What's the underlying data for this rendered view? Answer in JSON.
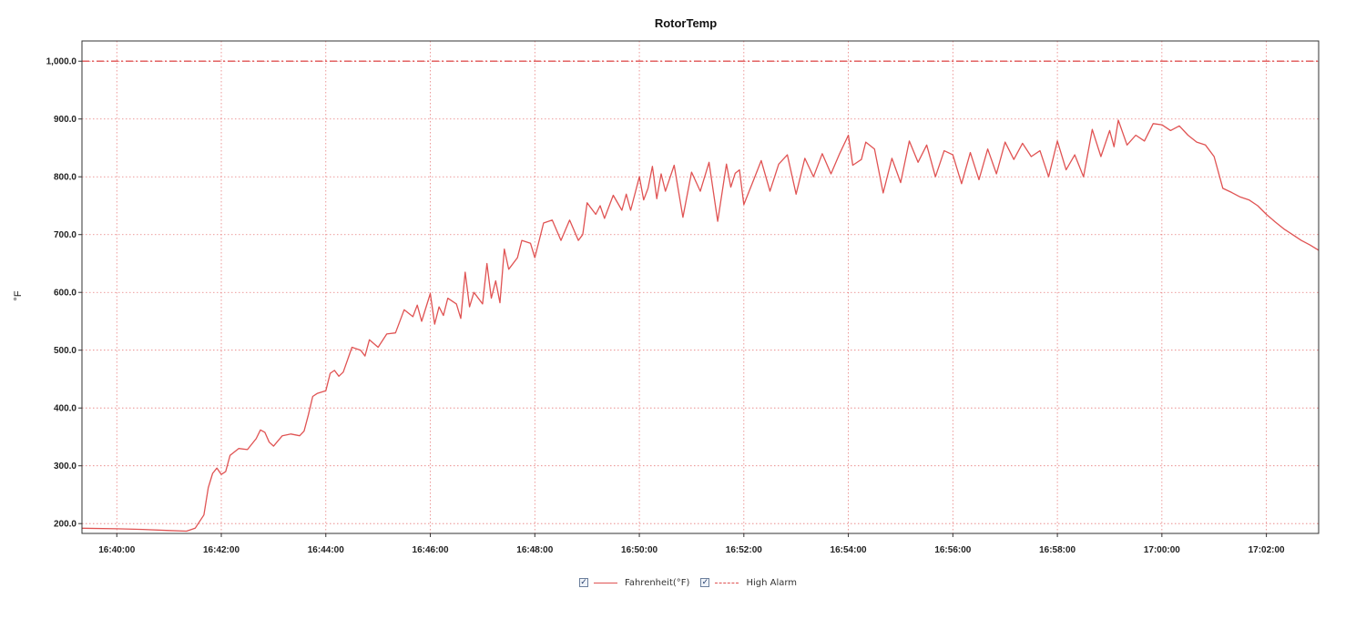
{
  "chart_data": {
    "type": "line",
    "title": "RotorTemp",
    "ylabel": "°F",
    "xlabel": "",
    "ylim": [
      183,
      1035
    ],
    "xlim": [
      "16:39:20",
      "17:03:00"
    ],
    "x_ticks": [
      "16:40:00",
      "16:42:00",
      "16:44:00",
      "16:46:00",
      "16:48:00",
      "16:50:00",
      "16:52:00",
      "16:54:00",
      "16:56:00",
      "16:58:00",
      "17:00:00",
      "17:02:00"
    ],
    "y_ticks": [
      "200.0",
      "300.0",
      "400.0",
      "500.0",
      "600.0",
      "700.0",
      "800.0",
      "900.0",
      "1,000.0"
    ],
    "grid": true,
    "legend_position": "bottom-center",
    "series": [
      {
        "name": "Fahrenheit(°F)",
        "color": "#e05353",
        "style": "solid",
        "points": [
          [
            "16:39:20",
            192
          ],
          [
            "16:40:00",
            191
          ],
          [
            "16:40:30",
            190
          ],
          [
            "16:41:00",
            188
          ],
          [
            "16:41:20",
            187
          ],
          [
            "16:41:30",
            192
          ],
          [
            "16:41:40",
            215
          ],
          [
            "16:41:45",
            262
          ],
          [
            "16:41:50",
            287
          ],
          [
            "16:41:55",
            296
          ],
          [
            "16:42:00",
            285
          ],
          [
            "16:42:05",
            290
          ],
          [
            "16:42:10",
            318
          ],
          [
            "16:42:20",
            330
          ],
          [
            "16:42:30",
            328
          ],
          [
            "16:42:40",
            347
          ],
          [
            "16:42:45",
            362
          ],
          [
            "16:42:50",
            358
          ],
          [
            "16:42:55",
            341
          ],
          [
            "16:43:00",
            334
          ],
          [
            "16:43:10",
            352
          ],
          [
            "16:43:20",
            355
          ],
          [
            "16:43:30",
            352
          ],
          [
            "16:43:35",
            360
          ],
          [
            "16:43:40",
            388
          ],
          [
            "16:43:45",
            420
          ],
          [
            "16:43:50",
            425
          ],
          [
            "16:44:00",
            430
          ],
          [
            "16:44:05",
            460
          ],
          [
            "16:44:10",
            465
          ],
          [
            "16:44:15",
            455
          ],
          [
            "16:44:20",
            462
          ],
          [
            "16:44:30",
            505
          ],
          [
            "16:44:40",
            500
          ],
          [
            "16:44:45",
            490
          ],
          [
            "16:44:50",
            518
          ],
          [
            "16:45:00",
            505
          ],
          [
            "16:45:10",
            528
          ],
          [
            "16:45:20",
            530
          ],
          [
            "16:45:30",
            570
          ],
          [
            "16:45:40",
            558
          ],
          [
            "16:45:45",
            578
          ],
          [
            "16:45:50",
            550
          ],
          [
            "16:46:00",
            598
          ],
          [
            "16:46:05",
            545
          ],
          [
            "16:46:10",
            575
          ],
          [
            "16:46:15",
            560
          ],
          [
            "16:46:20",
            590
          ],
          [
            "16:46:30",
            580
          ],
          [
            "16:46:35",
            555
          ],
          [
            "16:46:40",
            635
          ],
          [
            "16:46:45",
            575
          ],
          [
            "16:46:50",
            600
          ],
          [
            "16:47:00",
            580
          ],
          [
            "16:47:05",
            650
          ],
          [
            "16:47:10",
            590
          ],
          [
            "16:47:15",
            620
          ],
          [
            "16:47:20",
            582
          ],
          [
            "16:47:25",
            675
          ],
          [
            "16:47:30",
            640
          ],
          [
            "16:47:40",
            660
          ],
          [
            "16:47:45",
            690
          ],
          [
            "16:47:55",
            685
          ],
          [
            "16:48:00",
            660
          ],
          [
            "16:48:10",
            720
          ],
          [
            "16:48:20",
            725
          ],
          [
            "16:48:30",
            690
          ],
          [
            "16:48:40",
            725
          ],
          [
            "16:48:50",
            690
          ],
          [
            "16:48:55",
            700
          ],
          [
            "16:49:00",
            755
          ],
          [
            "16:49:10",
            735
          ],
          [
            "16:49:15",
            750
          ],
          [
            "16:49:20",
            728
          ],
          [
            "16:49:30",
            768
          ],
          [
            "16:49:40",
            742
          ],
          [
            "16:49:45",
            770
          ],
          [
            "16:49:50",
            742
          ],
          [
            "16:50:00",
            800
          ],
          [
            "16:50:05",
            760
          ],
          [
            "16:50:10",
            780
          ],
          [
            "16:50:15",
            818
          ],
          [
            "16:50:20",
            762
          ],
          [
            "16:50:25",
            805
          ],
          [
            "16:50:30",
            775
          ],
          [
            "16:50:40",
            820
          ],
          [
            "16:50:50",
            730
          ],
          [
            "16:51:00",
            808
          ],
          [
            "16:51:10",
            775
          ],
          [
            "16:51:20",
            825
          ],
          [
            "16:51:30",
            723
          ],
          [
            "16:51:40",
            822
          ],
          [
            "16:51:45",
            782
          ],
          [
            "16:51:50",
            806
          ],
          [
            "16:51:55",
            812
          ],
          [
            "16:52:00",
            752
          ],
          [
            "16:52:10",
            790
          ],
          [
            "16:52:20",
            828
          ],
          [
            "16:52:30",
            775
          ],
          [
            "16:52:40",
            822
          ],
          [
            "16:52:50",
            838
          ],
          [
            "16:53:00",
            770
          ],
          [
            "16:53:10",
            832
          ],
          [
            "16:53:20",
            800
          ],
          [
            "16:53:30",
            840
          ],
          [
            "16:53:40",
            805
          ],
          [
            "16:53:50",
            840
          ],
          [
            "16:54:00",
            872
          ],
          [
            "16:54:05",
            820
          ],
          [
            "16:54:15",
            830
          ],
          [
            "16:54:20",
            860
          ],
          [
            "16:54:30",
            848
          ],
          [
            "16:54:40",
            772
          ],
          [
            "16:54:50",
            832
          ],
          [
            "16:55:00",
            790
          ],
          [
            "16:55:10",
            862
          ],
          [
            "16:55:20",
            825
          ],
          [
            "16:55:30",
            855
          ],
          [
            "16:55:40",
            800
          ],
          [
            "16:55:50",
            845
          ],
          [
            "16:56:00",
            838
          ],
          [
            "16:56:10",
            788
          ],
          [
            "16:56:20",
            842
          ],
          [
            "16:56:30",
            795
          ],
          [
            "16:56:40",
            848
          ],
          [
            "16:56:50",
            805
          ],
          [
            "16:57:00",
            860
          ],
          [
            "16:57:10",
            830
          ],
          [
            "16:57:20",
            858
          ],
          [
            "16:57:30",
            835
          ],
          [
            "16:57:40",
            845
          ],
          [
            "16:57:50",
            800
          ],
          [
            "16:58:00",
            862
          ],
          [
            "16:58:10",
            812
          ],
          [
            "16:58:20",
            838
          ],
          [
            "16:58:30",
            800
          ],
          [
            "16:58:40",
            882
          ],
          [
            "16:58:50",
            835
          ],
          [
            "16:59:00",
            880
          ],
          [
            "16:59:05",
            852
          ],
          [
            "16:59:10",
            898
          ],
          [
            "16:59:20",
            855
          ],
          [
            "16:59:30",
            872
          ],
          [
            "16:59:40",
            862
          ],
          [
            "16:59:50",
            892
          ],
          [
            "17:00:00",
            890
          ],
          [
            "17:00:10",
            880
          ],
          [
            "17:00:20",
            888
          ],
          [
            "17:00:30",
            872
          ],
          [
            "17:00:40",
            860
          ],
          [
            "17:00:50",
            855
          ],
          [
            "17:01:00",
            835
          ],
          [
            "17:01:10",
            780
          ],
          [
            "17:01:20",
            773
          ],
          [
            "17:01:30",
            765
          ],
          [
            "17:01:40",
            760
          ],
          [
            "17:01:50",
            750
          ],
          [
            "17:02:00",
            735
          ],
          [
            "17:02:10",
            722
          ],
          [
            "17:02:20",
            710
          ],
          [
            "17:02:30",
            700
          ],
          [
            "17:02:40",
            690
          ],
          [
            "17:02:50",
            682
          ],
          [
            "17:03:00",
            673
          ]
        ]
      },
      {
        "name": "High Alarm",
        "color": "#e05353",
        "style": "dash-dot",
        "points": [
          [
            "16:39:20",
            1000
          ],
          [
            "17:03:00",
            1000
          ]
        ]
      }
    ]
  },
  "legend": {
    "checked_glyph": "✓",
    "items": [
      {
        "label": "Fahrenheit(°F)",
        "checked": true
      },
      {
        "label": "High Alarm",
        "checked": true
      }
    ]
  }
}
